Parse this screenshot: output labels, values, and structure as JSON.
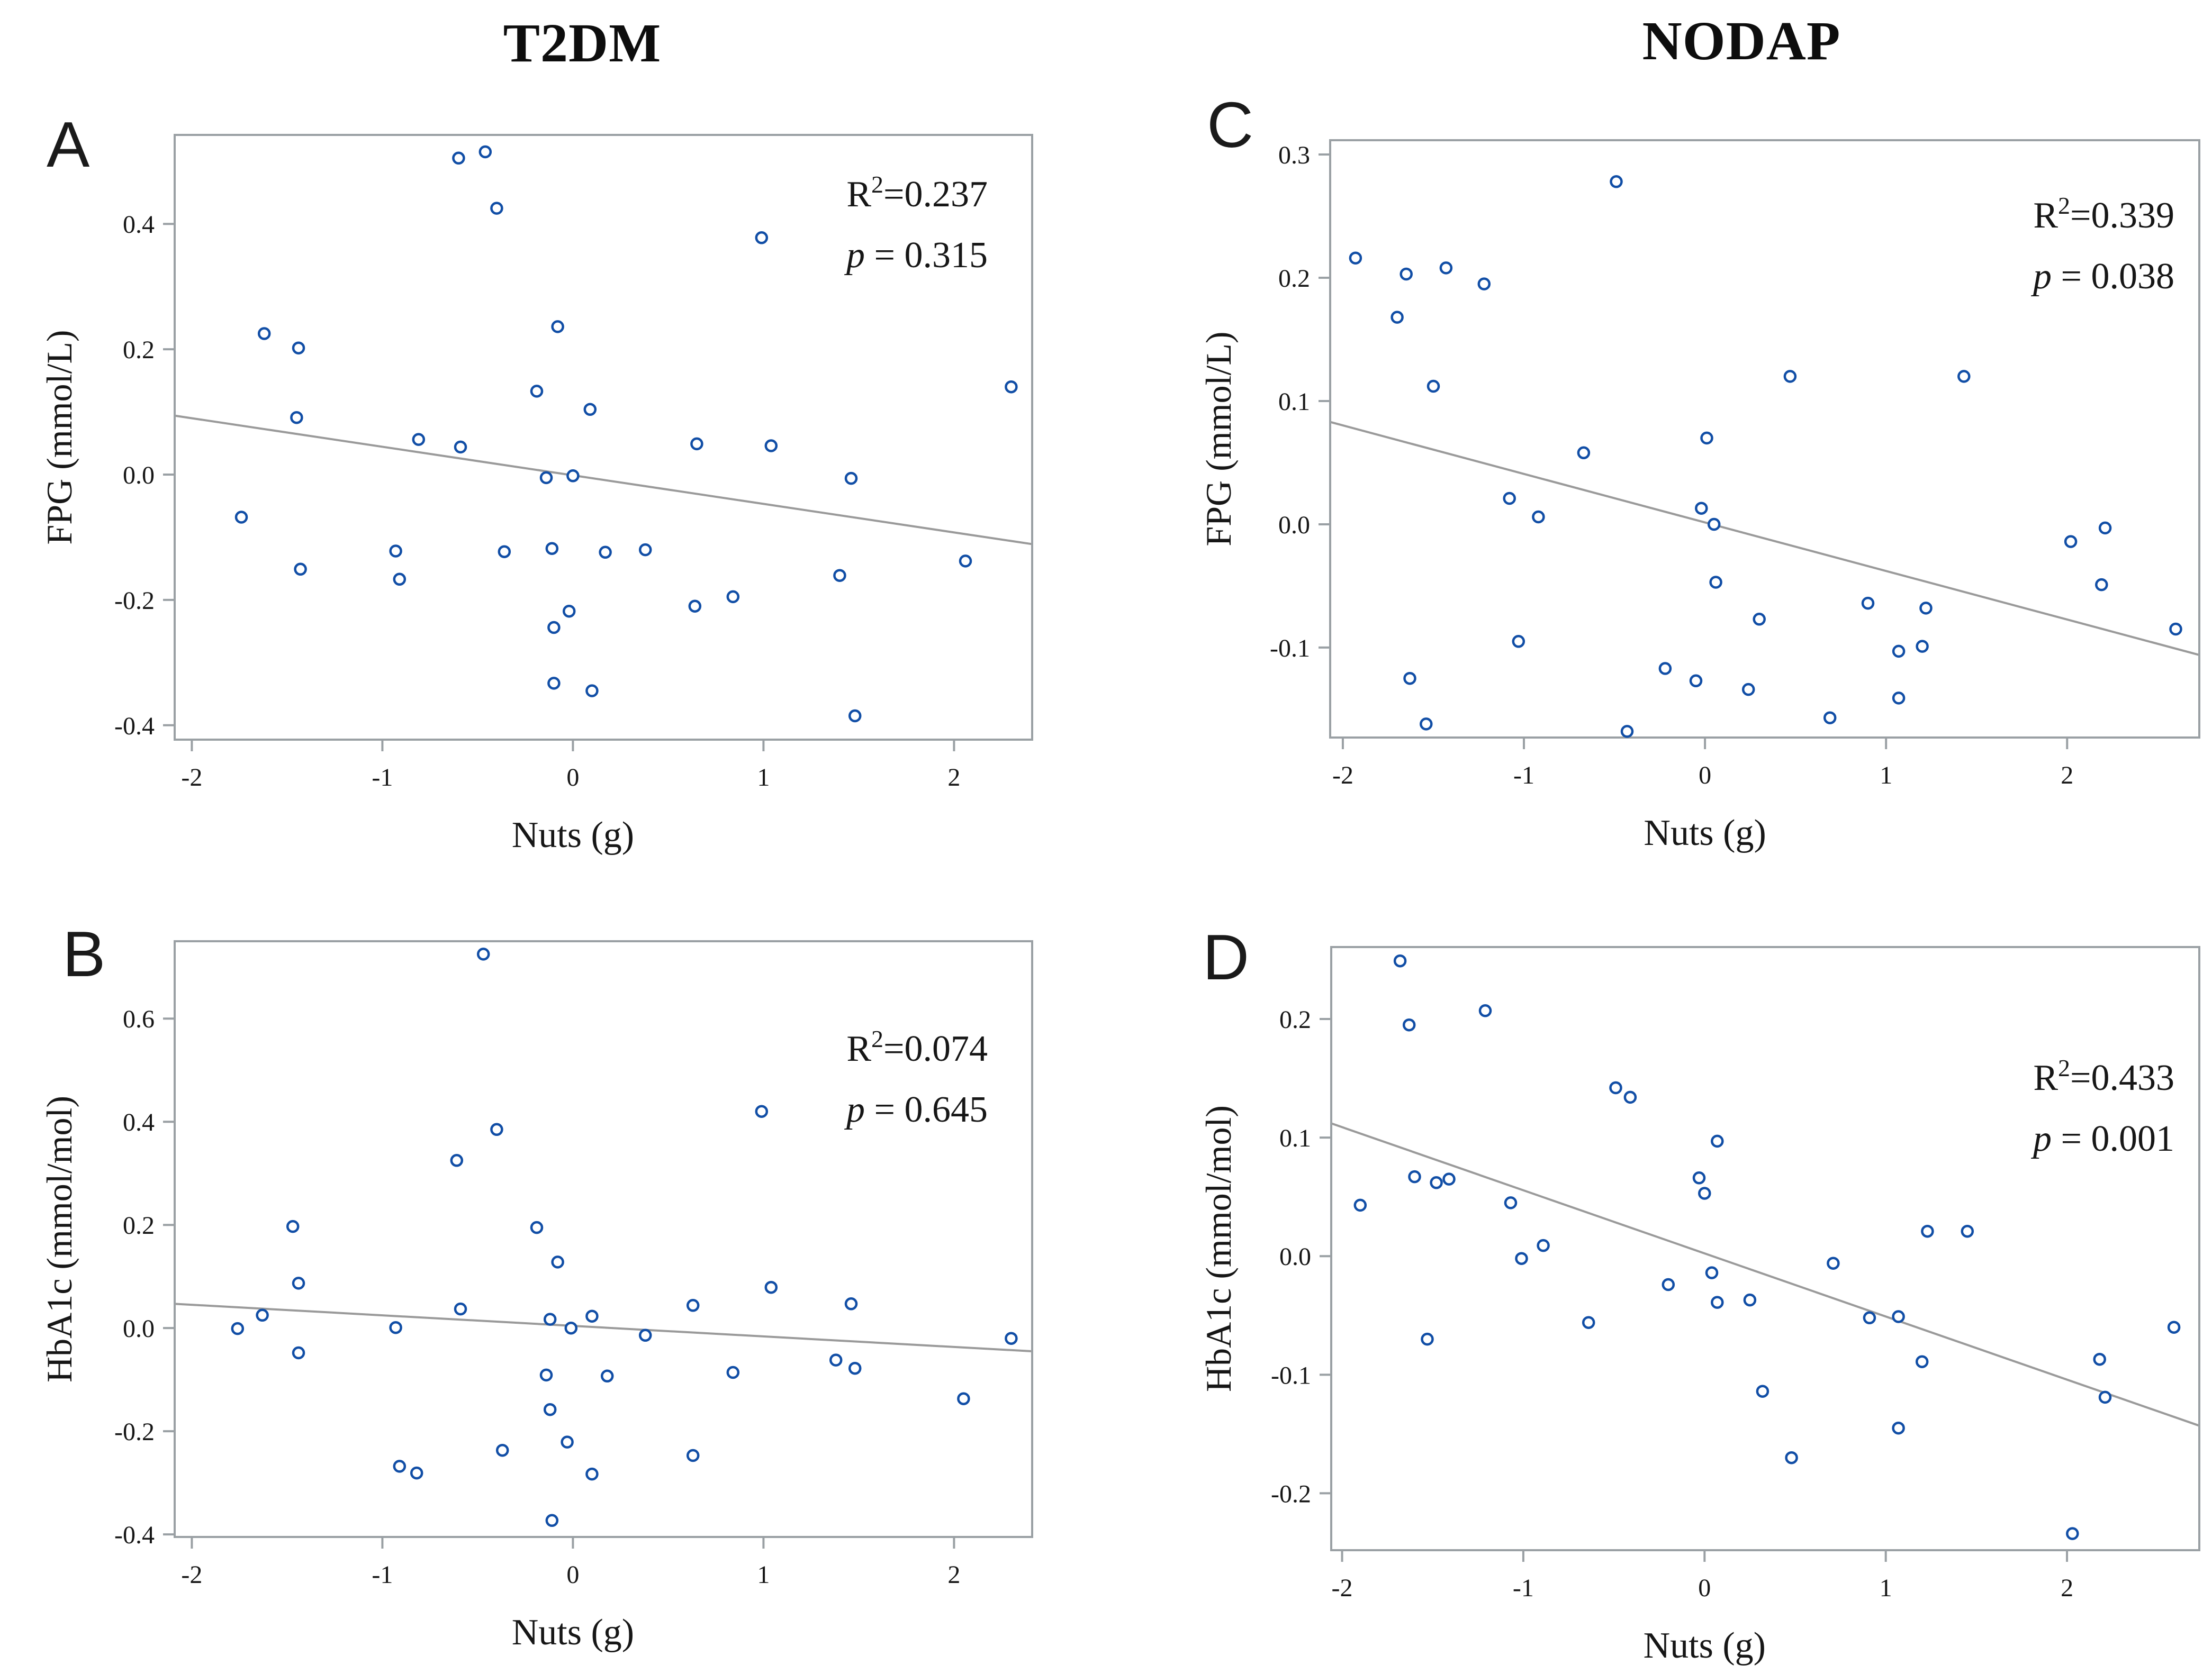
{
  "figure": {
    "column_titles": [
      {
        "label": "T2DM"
      },
      {
        "label": "NODAP"
      }
    ],
    "colors": {
      "marker": "#114EA6",
      "regression_line": "#9a9a9a",
      "frame": "#9aa0a4",
      "tick": "#9aa0a4",
      "text": "#161616"
    }
  },
  "chart_data": [
    {
      "id": "A",
      "type": "scatter",
      "column": "T2DM",
      "xlabel": "Nuts (g)",
      "ylabel": "FPG (mmol/L)",
      "r2_label": "R",
      "r2_sup": "2",
      "r2_value": "=0.237",
      "p_italic": "p",
      "p_value": " = 0.315",
      "xlim": [
        -2.09,
        2.41
      ],
      "ylim": [
        -0.423,
        0.542
      ],
      "xticks": [
        "-2",
        "-1",
        "0",
        "1",
        "2"
      ],
      "yticks": [
        "0.4",
        "0.2",
        "0.0",
        "-0.2",
        "-0.4"
      ],
      "regression_line": {
        "x1": -2.09,
        "y1": 0.094,
        "x2": 2.41,
        "y2": -0.111
      },
      "points": [
        [
          -0.6,
          0.505
        ],
        [
          -0.46,
          0.515
        ],
        [
          -0.4,
          0.425
        ],
        [
          0.99,
          0.378
        ],
        [
          -1.62,
          0.225
        ],
        [
          -1.44,
          0.202
        ],
        [
          -0.08,
          0.236
        ],
        [
          -0.19,
          0.133
        ],
        [
          0.09,
          0.104
        ],
        [
          -1.45,
          0.091
        ],
        [
          -0.81,
          0.056
        ],
        [
          -0.59,
          0.044
        ],
        [
          0.65,
          0.049
        ],
        [
          1.04,
          0.046
        ],
        [
          -0.14,
          -0.005
        ],
        [
          0.0,
          -0.002
        ],
        [
          1.46,
          -0.006
        ],
        [
          -1.74,
          -0.068
        ],
        [
          -0.93,
          -0.122
        ],
        [
          -0.36,
          -0.123
        ],
        [
          -0.11,
          -0.118
        ],
        [
          0.17,
          -0.124
        ],
        [
          0.38,
          -0.12
        ],
        [
          -1.43,
          -0.151
        ],
        [
          -0.91,
          -0.167
        ],
        [
          1.4,
          -0.161
        ],
        [
          2.06,
          -0.138
        ],
        [
          0.84,
          -0.195
        ],
        [
          0.64,
          -0.21
        ],
        [
          -0.02,
          -0.218
        ],
        [
          -0.1,
          -0.244
        ],
        [
          -0.1,
          -0.333
        ],
        [
          0.1,
          -0.345
        ],
        [
          1.48,
          -0.385
        ],
        [
          2.3,
          0.14
        ]
      ]
    },
    {
      "id": "B",
      "type": "scatter",
      "column": "T2DM",
      "xlabel": "Nuts (g)",
      "ylabel": "HbA1c (mmol/mol)",
      "r2_label": "R",
      "r2_sup": "2",
      "r2_value": "=0.074",
      "p_italic": "p",
      "p_value": " = 0.645",
      "xlim": [
        -2.09,
        2.41
      ],
      "ylim": [
        -0.405,
        0.75
      ],
      "xticks": [
        "-2",
        "-1",
        "0",
        "1",
        "2"
      ],
      "yticks": [
        "0.6",
        "0.4",
        "0.2",
        "0.0",
        "-0.2",
        "-0.4"
      ],
      "regression_line": {
        "x1": -2.09,
        "y1": 0.047,
        "x2": 2.41,
        "y2": -0.045
      },
      "points": [
        [
          -0.47,
          0.725
        ],
        [
          0.99,
          0.42
        ],
        [
          -0.4,
          0.385
        ],
        [
          -0.61,
          0.325
        ],
        [
          -1.47,
          0.197
        ],
        [
          -0.19,
          0.195
        ],
        [
          -0.08,
          0.128
        ],
        [
          -1.44,
          0.087
        ],
        [
          1.04,
          0.079
        ],
        [
          -0.59,
          0.037
        ],
        [
          0.63,
          0.044
        ],
        [
          1.46,
          0.047
        ],
        [
          -1.63,
          0.025
        ],
        [
          -0.12,
          0.017
        ],
        [
          0.1,
          0.023
        ],
        [
          -1.76,
          -0.001
        ],
        [
          -0.93,
          0.001
        ],
        [
          -0.01,
          0.0
        ],
        [
          0.38,
          -0.014
        ],
        [
          -1.44,
          -0.048
        ],
        [
          1.38,
          -0.062
        ],
        [
          1.48,
          -0.078
        ],
        [
          0.84,
          -0.086
        ],
        [
          -0.14,
          -0.091
        ],
        [
          0.18,
          -0.093
        ],
        [
          -0.12,
          -0.158
        ],
        [
          2.05,
          -0.137
        ],
        [
          -0.03,
          -0.221
        ],
        [
          -0.37,
          -0.237
        ],
        [
          0.63,
          -0.247
        ],
        [
          -0.91,
          -0.268
        ],
        [
          -0.82,
          -0.281
        ],
        [
          0.1,
          -0.283
        ],
        [
          -0.11,
          -0.373
        ],
        [
          2.3,
          -0.02
        ]
      ]
    },
    {
      "id": "C",
      "type": "scatter",
      "column": "NODAP",
      "xlabel": "Nuts (g)",
      "ylabel": "FPG (mmol/L)",
      "r2_label": "R",
      "r2_sup": "2",
      "r2_value": "=0.339",
      "p_italic": "p",
      "p_value": " = 0.038",
      "xlim": [
        -2.07,
        2.73
      ],
      "ylim": [
        -0.173,
        0.3116
      ],
      "xticks": [
        "-2",
        "-1",
        "0",
        "1",
        "2"
      ],
      "yticks": [
        "0.3",
        "0.2",
        "0.1",
        "0.0",
        "-0.1"
      ],
      "regression_line": {
        "x1": -2.07,
        "y1": 0.083,
        "x2": 2.73,
        "y2": -0.106
      },
      "points": [
        [
          -0.49,
          0.278
        ],
        [
          -1.93,
          0.216
        ],
        [
          -1.65,
          0.203
        ],
        [
          -1.43,
          0.208
        ],
        [
          -1.22,
          0.195
        ],
        [
          -1.7,
          0.168
        ],
        [
          -1.5,
          0.112
        ],
        [
          0.47,
          0.12
        ],
        [
          1.43,
          0.12
        ],
        [
          -0.67,
          0.058
        ],
        [
          0.01,
          0.07
        ],
        [
          -1.08,
          0.021
        ],
        [
          -0.92,
          0.006
        ],
        [
          -0.02,
          0.013
        ],
        [
          0.05,
          0.0
        ],
        [
          2.02,
          -0.014
        ],
        [
          2.21,
          -0.003
        ],
        [
          0.06,
          -0.047
        ],
        [
          2.19,
          -0.049
        ],
        [
          0.3,
          -0.077
        ],
        [
          0.9,
          -0.064
        ],
        [
          1.22,
          -0.068
        ],
        [
          -1.03,
          -0.095
        ],
        [
          1.07,
          -0.103
        ],
        [
          1.2,
          -0.099
        ],
        [
          2.6,
          -0.085
        ],
        [
          -0.22,
          -0.117
        ],
        [
          -0.05,
          -0.127
        ],
        [
          -1.63,
          -0.125
        ],
        [
          0.24,
          -0.134
        ],
        [
          1.07,
          -0.141
        ],
        [
          -1.54,
          -0.162
        ],
        [
          -0.43,
          -0.168
        ],
        [
          0.69,
          -0.157
        ]
      ]
    },
    {
      "id": "D",
      "type": "scatter",
      "column": "NODAP",
      "xlabel": "Nuts (g)",
      "ylabel": "HbA1c (mmol/mol)",
      "r2_label": "R",
      "r2_sup": "2",
      "r2_value": "=0.433",
      "p_italic": "p",
      "p_value": " = 0.001",
      "xlim": [
        -2.06,
        2.73
      ],
      "ylim": [
        -0.248,
        0.2607
      ],
      "xticks": [
        "-2",
        "-1",
        "0",
        "1",
        "2"
      ],
      "yticks": [
        "0.2",
        "0.1",
        "0.0",
        "-0.1",
        "-0.2"
      ],
      "regression_line": {
        "x1": -2.06,
        "y1": 0.112,
        "x2": 2.73,
        "y2": -0.143
      },
      "points": [
        [
          -1.68,
          0.249
        ],
        [
          -1.21,
          0.207
        ],
        [
          -1.63,
          0.195
        ],
        [
          -0.49,
          0.142
        ],
        [
          -0.41,
          0.134
        ],
        [
          0.07,
          0.097
        ],
        [
          -1.6,
          0.067
        ],
        [
          -1.48,
          0.062
        ],
        [
          -1.41,
          0.065
        ],
        [
          -0.03,
          0.066
        ],
        [
          0.0,
          0.053
        ],
        [
          -1.07,
          0.045
        ],
        [
          -1.9,
          0.043
        ],
        [
          -0.89,
          0.009
        ],
        [
          -1.01,
          -0.002
        ],
        [
          1.23,
          0.021
        ],
        [
          1.45,
          0.021
        ],
        [
          0.71,
          -0.006
        ],
        [
          0.04,
          -0.014
        ],
        [
          -0.2,
          -0.024
        ],
        [
          0.07,
          -0.039
        ],
        [
          0.25,
          -0.037
        ],
        [
          0.91,
          -0.052
        ],
        [
          1.07,
          -0.051
        ],
        [
          -0.64,
          -0.056
        ],
        [
          -1.53,
          -0.07
        ],
        [
          1.2,
          -0.089
        ],
        [
          2.18,
          -0.087
        ],
        [
          0.32,
          -0.114
        ],
        [
          2.21,
          -0.119
        ],
        [
          2.59,
          -0.06
        ],
        [
          1.07,
          -0.145
        ],
        [
          0.48,
          -0.17
        ],
        [
          2.03,
          -0.234
        ]
      ]
    }
  ]
}
